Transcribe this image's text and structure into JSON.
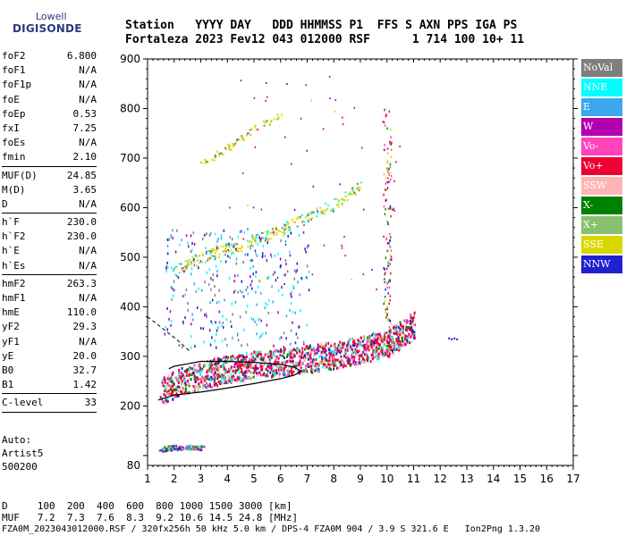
{
  "logo": {
    "top": "Lowell",
    "bottom": "DIGISONDE"
  },
  "header": {
    "line1": "Station   YYYY DAY   DDD HHMMSS P1  FFS S AXN PPS IGA PS",
    "line2": "Fortaleza 2023 Fev12 043 012000 RSF      1 714 100 10+ 11"
  },
  "params": {
    "group1": [
      {
        "name": "foF2",
        "value": "6.800"
      },
      {
        "name": "foF1",
        "value": "N/A"
      },
      {
        "name": "foF1p",
        "value": "N/A"
      },
      {
        "name": "foE",
        "value": "N/A"
      },
      {
        "name": "foEp",
        "value": "0.53"
      },
      {
        "name": "fxI",
        "value": "7.25"
      },
      {
        "name": "foEs",
        "value": "N/A"
      },
      {
        "name": "fmin",
        "value": "2.10"
      }
    ],
    "group2": [
      {
        "name": "MUF(D)",
        "value": "24.85"
      },
      {
        "name": "M(D)",
        "value": "3.65"
      },
      {
        "name": "D",
        "value": "N/A"
      }
    ],
    "group3": [
      {
        "name": "h`F",
        "value": "230.0"
      },
      {
        "name": "h`F2",
        "value": "230.0"
      },
      {
        "name": "h`E",
        "value": "N/A"
      },
      {
        "name": "h`Es",
        "value": "N/A"
      }
    ],
    "group4": [
      {
        "name": "hmF2",
        "value": "263.3"
      },
      {
        "name": "hmF1",
        "value": "N/A"
      },
      {
        "name": "hmE",
        "value": "110.0"
      },
      {
        "name": "yF2",
        "value": "29.3"
      },
      {
        "name": "yF1",
        "value": "N/A"
      },
      {
        "name": "yE",
        "value": "20.0"
      },
      {
        "name": "B0",
        "value": "32.7"
      },
      {
        "name": "B1",
        "value": "1.42"
      }
    ],
    "group5": [
      {
        "name": "C-level",
        "value": "33"
      }
    ]
  },
  "auto": {
    "line1": "Auto:",
    "line2": "Artist5",
    "line3": "500200"
  },
  "legend": [
    {
      "label": "NoVal",
      "color": "#7f7f7f"
    },
    {
      "label": "NNE",
      "color": "#00ffff"
    },
    {
      "label": "E",
      "color": "#3aa7ee"
    },
    {
      "label": "W",
      "color": "#b000b0"
    },
    {
      "label": "Vo-",
      "color": "#ff44bb"
    },
    {
      "label": "Vo+",
      "color": "#ee0033"
    },
    {
      "label": "SSW",
      "color": "#ffb4b4"
    },
    {
      "label": "X-",
      "color": "#008000"
    },
    {
      "label": "X+",
      "color": "#88c070"
    },
    {
      "label": "SSE",
      "color": "#d8d800"
    },
    {
      "label": "NNW",
      "color": "#2020d0"
    }
  ],
  "footer": {
    "d_row": "D     100  200  400  600  800 1000 1500 3000 [km]",
    "muf_row": "MUF   7.2  7.3  7.6  8.3  9.2 10.6 14.5 24.8 [MHz]",
    "info": "FZA0M_2023043012000.RSF / 320fx256h 50 kHz 5.0 km / DPS-4 FZA0M 904 / 3.9 S 321.6 E   Ion2Png 1.3.20"
  },
  "chart_data": {
    "type": "scatter",
    "title": "",
    "xlabel": "",
    "ylabel": "",
    "xlim": [
      1,
      17
    ],
    "ylim": [
      80,
      900
    ],
    "xticks": [
      "1",
      "2",
      "3",
      "4",
      "5",
      "6",
      "7",
      "8",
      "9",
      "10",
      "11",
      "12",
      "13",
      "14",
      "15",
      "16",
      "17"
    ],
    "yticks": [
      {
        "value": 200,
        "label": "200"
      },
      {
        "value": 300,
        "label": "300"
      },
      {
        "value": 400,
        "label": "400"
      },
      {
        "value": 500,
        "label": "500"
      },
      {
        "value": 600,
        "label": "600"
      },
      {
        "value": 700,
        "label": "700"
      },
      {
        "value": 800,
        "label": "800"
      },
      {
        "value": 900,
        "label": "900"
      }
    ],
    "ionogram_trace": [
      [
        1.5,
        232
      ],
      [
        2.0,
        243
      ],
      [
        2.5,
        256
      ],
      [
        3.0,
        262
      ],
      [
        3.5,
        270
      ],
      [
        4.0,
        275
      ],
      [
        4.5,
        280
      ],
      [
        5.0,
        285
      ],
      [
        5.5,
        288
      ],
      [
        6.0,
        290
      ],
      [
        6.5,
        292
      ],
      [
        7.0,
        296
      ],
      [
        7.5,
        300
      ],
      [
        8.0,
        304
      ],
      [
        8.5,
        310
      ],
      [
        9.0,
        315
      ],
      [
        9.5,
        322
      ],
      [
        10.0,
        330
      ],
      [
        10.5,
        345
      ],
      [
        11.0,
        365
      ]
    ],
    "high_traces": [
      [
        2.0,
        470
      ],
      [
        2.5,
        490
      ],
      [
        3.0,
        500
      ],
      [
        3.5,
        510
      ],
      [
        4.0,
        518
      ],
      [
        4.5,
        525
      ],
      [
        5.0,
        535
      ],
      [
        5.5,
        545
      ],
      [
        6.0,
        555
      ],
      [
        6.5,
        570
      ],
      [
        7.0,
        580
      ],
      [
        7.5,
        595
      ],
      [
        8.0,
        610
      ],
      [
        8.5,
        625
      ],
      [
        9.0,
        650
      ]
    ],
    "upper_traces": [
      [
        3.0,
        690
      ],
      [
        3.5,
        705
      ],
      [
        4.0,
        720
      ],
      [
        4.5,
        740
      ],
      [
        5.0,
        760
      ],
      [
        5.5,
        775
      ],
      [
        6.0,
        790
      ]
    ],
    "low_cluster": [
      [
        1.5,
        114
      ],
      [
        2.0,
        117
      ],
      [
        2.5,
        118
      ],
      [
        3.0,
        116
      ]
    ],
    "model_profile": [
      [
        1.4,
        212
      ],
      [
        2.0,
        222
      ],
      [
        3.0,
        228
      ],
      [
        4.0,
        236
      ],
      [
        5.0,
        245
      ],
      [
        6.0,
        255
      ],
      [
        6.5,
        262
      ],
      [
        6.8,
        270
      ],
      [
        6.5,
        278
      ],
      [
        6.0,
        284
      ],
      [
        5.0,
        288
      ],
      [
        4.0,
        290
      ],
      [
        3.0,
        290
      ],
      [
        2.5,
        285
      ],
      [
        2.0,
        280
      ],
      [
        1.8,
        275
      ]
    ],
    "dashed_line": [
      [
        1.0,
        380
      ],
      [
        2.0,
        338
      ],
      [
        2.6,
        310
      ]
    ],
    "isolated_point": [
      12.3,
      338
    ]
  }
}
